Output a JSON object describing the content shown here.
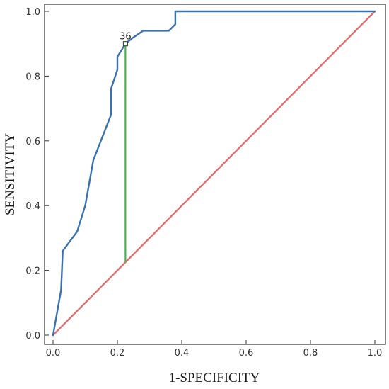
{
  "chart_data": {
    "type": "line",
    "title": "",
    "xlabel": "1-SPECIFICITY",
    "ylabel": "SENSITIVITY",
    "xlim": [
      0,
      1
    ],
    "ylim": [
      0,
      1
    ],
    "x_ticks": [
      "0.0",
      "0.2",
      "0.4",
      "0.6",
      "0.8",
      "1.0"
    ],
    "y_ticks": [
      "0.0",
      "0.2",
      "0.4",
      "0.6",
      "0.8",
      "1.0"
    ],
    "grid": false,
    "series": [
      {
        "color": "#3a72b0",
        "points": [
          [
            0.0,
            0.0
          ],
          [
            0.025,
            0.14
          ],
          [
            0.03,
            0.26
          ],
          [
            0.075,
            0.32
          ],
          [
            0.1,
            0.4
          ],
          [
            0.125,
            0.54
          ],
          [
            0.18,
            0.68
          ],
          [
            0.18,
            0.76
          ],
          [
            0.2,
            0.82
          ],
          [
            0.2,
            0.86
          ],
          [
            0.225,
            0.9
          ],
          [
            0.25,
            0.92
          ],
          [
            0.28,
            0.94
          ],
          [
            0.36,
            0.94
          ],
          [
            0.38,
            0.96
          ],
          [
            0.38,
            1.0
          ],
          [
            1.0,
            1.0
          ]
        ]
      },
      {
        "color": "#e07070",
        "points": [
          [
            0.0,
            0.0
          ],
          [
            1.0,
            1.0
          ]
        ]
      }
    ],
    "cutoff": {
      "label": "36",
      "x": 0.225,
      "y_top": 0.9,
      "y_bottom": 0.225,
      "color": "#4caf50"
    }
  }
}
